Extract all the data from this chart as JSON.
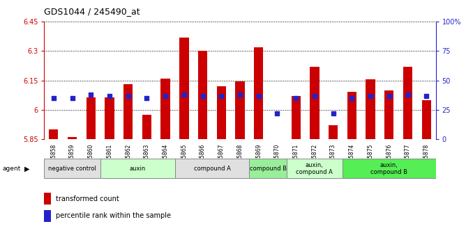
{
  "title": "GDS1044 / 245490_at",
  "samples": [
    "GSM25858",
    "GSM25859",
    "GSM25860",
    "GSM25861",
    "GSM25862",
    "GSM25863",
    "GSM25864",
    "GSM25865",
    "GSM25866",
    "GSM25867",
    "GSM25868",
    "GSM25869",
    "GSM25870",
    "GSM25871",
    "GSM25872",
    "GSM25873",
    "GSM25874",
    "GSM25875",
    "GSM25876",
    "GSM25877",
    "GSM25878"
  ],
  "bar_values": [
    5.9,
    5.862,
    6.065,
    6.065,
    6.13,
    5.975,
    6.16,
    6.37,
    6.3,
    6.12,
    6.145,
    6.32,
    5.842,
    6.07,
    6.22,
    5.92,
    6.09,
    6.155,
    6.1,
    6.22,
    6.05
  ],
  "percentile_values": [
    35,
    35,
    38,
    37,
    37,
    35,
    37,
    38,
    37,
    37,
    38,
    37,
    22,
    35,
    37,
    22,
    35,
    37,
    37,
    38,
    37
  ],
  "ymin": 5.85,
  "ymax": 6.45,
  "yticks": [
    5.85,
    6.0,
    6.15,
    6.3,
    6.45
  ],
  "ytick_labels": [
    "5.85",
    "6",
    "6.15",
    "6.3",
    "6.45"
  ],
  "right_yticks": [
    0,
    25,
    50,
    75,
    100
  ],
  "right_ytick_labels": [
    "0",
    "25",
    "50",
    "75",
    "100%"
  ],
  "bar_color": "#cc0000",
  "dot_color": "#2222cc",
  "agent_groups": [
    {
      "label": "negative control",
      "start": 0,
      "end": 3,
      "color": "#e0e0e0"
    },
    {
      "label": "auxin",
      "start": 3,
      "end": 7,
      "color": "#ccffcc"
    },
    {
      "label": "compound A",
      "start": 7,
      "end": 11,
      "color": "#e0e0e0"
    },
    {
      "label": "compound B",
      "start": 11,
      "end": 13,
      "color": "#99ee99"
    },
    {
      "label": "auxin,\ncompound A",
      "start": 13,
      "end": 16,
      "color": "#ccffcc"
    },
    {
      "label": "auxin,\ncompound B",
      "start": 16,
      "end": 21,
      "color": "#55ee55"
    }
  ],
  "legend_items": [
    {
      "label": "transformed count",
      "color": "#cc0000"
    },
    {
      "label": "percentile rank within the sample",
      "color": "#2222cc"
    }
  ]
}
